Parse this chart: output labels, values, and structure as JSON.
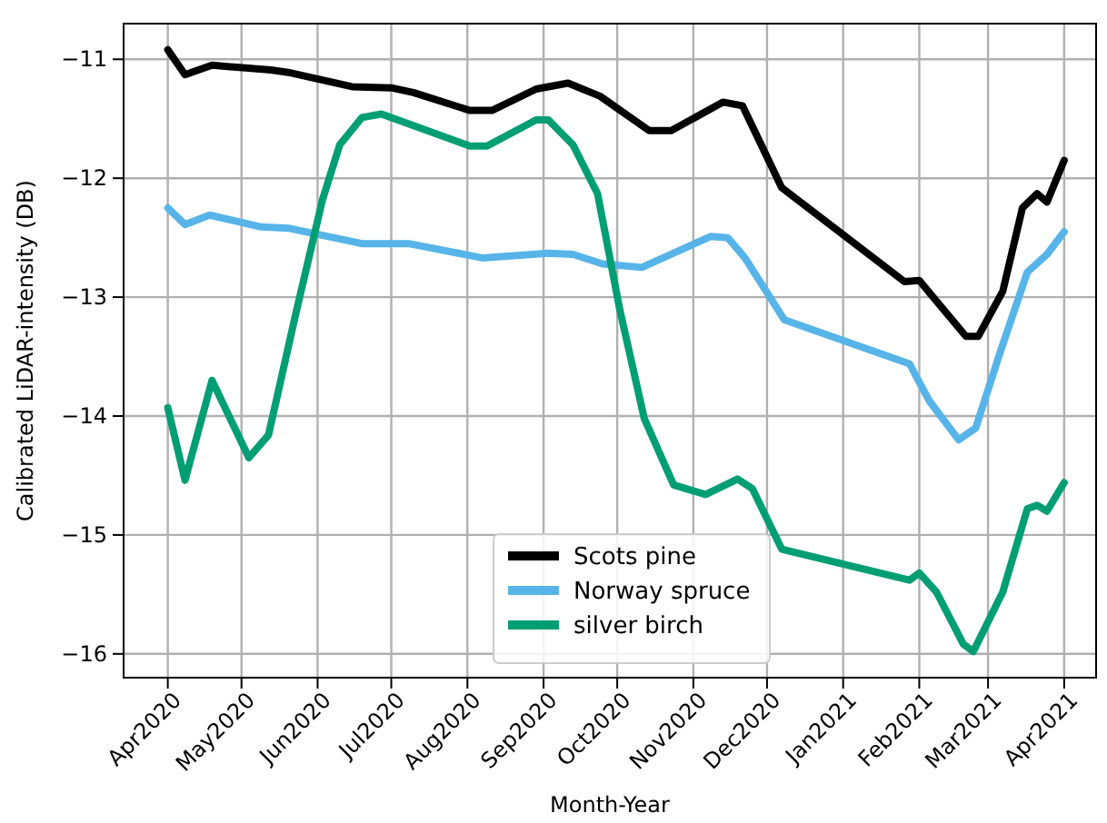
{
  "chart_data": {
    "type": "line",
    "xlabel": "Month-Year",
    "ylabel": "Calibrated LiDAR-intensity (DB)",
    "xlim": [
      "2020-03-14",
      "2021-04-14"
    ],
    "xticks": [
      {
        "value": "2020-04-01",
        "label": "Apr2020"
      },
      {
        "value": "2020-05-01",
        "label": "May2020"
      },
      {
        "value": "2020-06-01",
        "label": "Jun2020"
      },
      {
        "value": "2020-07-01",
        "label": "Jul2020"
      },
      {
        "value": "2020-08-01",
        "label": "Aug2020"
      },
      {
        "value": "2020-09-01",
        "label": "Sep2020"
      },
      {
        "value": "2020-10-01",
        "label": "Oct2020"
      },
      {
        "value": "2020-11-01",
        "label": "Nov2020"
      },
      {
        "value": "2020-12-01",
        "label": "Dec2020"
      },
      {
        "value": "2021-01-01",
        "label": "Jan2021"
      },
      {
        "value": "2021-02-01",
        "label": "Feb2021"
      },
      {
        "value": "2021-03-01",
        "label": "Mar2021"
      },
      {
        "value": "2021-04-01",
        "label": "Apr2021"
      }
    ],
    "ylim": [
      -16.2,
      -10.7
    ],
    "yticks": [
      -16,
      -15,
      -14,
      -13,
      -12,
      -11
    ],
    "grid": true,
    "legend": "bottom",
    "line_style": "solid",
    "marker": "none",
    "series": [
      {
        "name": "Scots pine",
        "color": "#000000",
        "x": [
          "2020-04-01",
          "2020-04-08",
          "2020-04-19",
          "2020-05-13",
          "2020-05-20",
          "2020-06-15",
          "2020-07-01",
          "2020-07-10",
          "2020-08-02",
          "2020-08-11",
          "2020-08-29",
          "2020-09-11",
          "2020-09-24",
          "2020-10-14",
          "2020-10-23",
          "2020-11-13",
          "2020-11-21",
          "2020-12-07",
          "2021-01-26",
          "2021-02-01",
          "2021-02-20",
          "2021-02-25",
          "2021-03-07",
          "2021-03-15",
          "2021-03-21",
          "2021-03-25",
          "2021-04-01"
        ],
        "values": [
          -10.92,
          -11.13,
          -11.05,
          -11.09,
          -11.11,
          -11.23,
          -11.24,
          -11.28,
          -11.43,
          -11.43,
          -11.25,
          -11.2,
          -11.31,
          -11.6,
          -11.6,
          -11.36,
          -11.39,
          -12.08,
          -12.87,
          -12.86,
          -13.33,
          -13.33,
          -12.95,
          -12.25,
          -12.13,
          -12.2,
          -11.85
        ]
      },
      {
        "name": "Norway spruce",
        "color": "#56b4e9",
        "x": [
          "2020-04-01",
          "2020-04-08",
          "2020-04-18",
          "2020-05-09",
          "2020-05-20",
          "2020-06-19",
          "2020-07-08",
          "2020-08-07",
          "2020-09-03",
          "2020-09-13",
          "2020-09-25",
          "2020-10-11",
          "2020-11-08",
          "2020-11-15",
          "2020-11-22",
          "2020-12-08",
          "2021-01-28",
          "2021-02-05",
          "2021-02-17",
          "2021-02-24",
          "2021-03-06",
          "2021-03-17",
          "2021-03-25",
          "2021-04-01"
        ],
        "values": [
          -12.25,
          -12.39,
          -12.31,
          -12.41,
          -12.42,
          -12.55,
          -12.55,
          -12.67,
          -12.63,
          -12.64,
          -12.72,
          -12.75,
          -12.49,
          -12.5,
          -12.67,
          -13.19,
          -13.56,
          -13.87,
          -14.2,
          -14.1,
          -13.46,
          -12.79,
          -12.64,
          -12.45
        ]
      },
      {
        "name": "silver birch",
        "color": "#009e73",
        "x": [
          "2020-04-01",
          "2020-04-08",
          "2020-04-19",
          "2020-05-04",
          "2020-05-12",
          "2020-05-23",
          "2020-06-03",
          "2020-06-10",
          "2020-06-19",
          "2020-06-27",
          "2020-08-02",
          "2020-08-09",
          "2020-08-29",
          "2020-09-03",
          "2020-09-13",
          "2020-09-23",
          "2020-10-02",
          "2020-10-12",
          "2020-10-24",
          "2020-11-06",
          "2020-11-19",
          "2020-11-25",
          "2020-12-07",
          "2021-01-28",
          "2021-02-01",
          "2021-02-08",
          "2021-02-19",
          "2021-02-23",
          "2021-03-07",
          "2021-03-17",
          "2021-03-21",
          "2021-03-25",
          "2021-04-01"
        ],
        "values": [
          -13.93,
          -14.54,
          -13.7,
          -14.35,
          -14.16,
          -13.15,
          -12.18,
          -11.72,
          -11.49,
          -11.46,
          -11.73,
          -11.73,
          -11.51,
          -11.51,
          -11.72,
          -12.13,
          -13.1,
          -14.02,
          -14.58,
          -14.66,
          -14.53,
          -14.61,
          -15.12,
          -15.38,
          -15.32,
          -15.48,
          -15.92,
          -15.98,
          -15.48,
          -14.78,
          -14.75,
          -14.8,
          -14.56
        ]
      }
    ]
  }
}
